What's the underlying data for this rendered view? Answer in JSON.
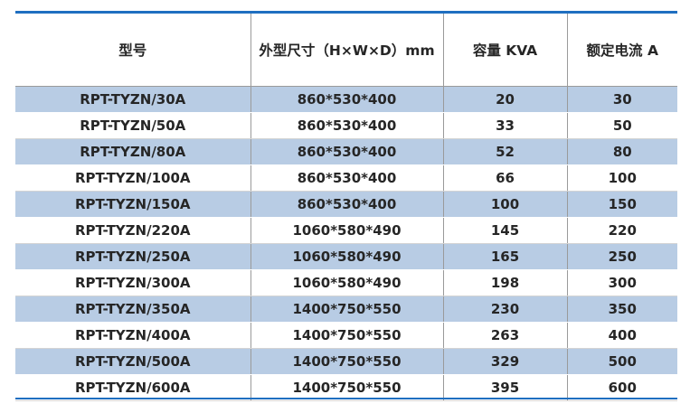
{
  "table": {
    "headers": [
      "型号",
      "外型尺寸（H×W×D）mm",
      "容量 KVA",
      "额定电流 A"
    ],
    "rows": [
      [
        "RPT-TYZN/30A",
        "860*530*400",
        "20",
        "30"
      ],
      [
        "RPT-TYZN/50A",
        "860*530*400",
        "33",
        "50"
      ],
      [
        "RPT-TYZN/80A",
        "860*530*400",
        "52",
        "80"
      ],
      [
        "RPT-TYZN/100A",
        "860*530*400",
        "66",
        "100"
      ],
      [
        "RPT-TYZN/150A",
        "860*530*400",
        "100",
        "150"
      ],
      [
        "RPT-TYZN/220A",
        "1060*580*490",
        "145",
        "220"
      ],
      [
        "RPT-TYZN/250A",
        "1060*580*490",
        "165",
        "250"
      ],
      [
        "RPT-TYZN/300A",
        "1060*580*490",
        "198",
        "300"
      ],
      [
        "RPT-TYZN/350A",
        "1400*750*550",
        "230",
        "350"
      ],
      [
        "RPT-TYZN/400A",
        "1400*750*550",
        "263",
        "400"
      ],
      [
        "RPT-TYZN/500A",
        "1400*750*550",
        "329",
        "500"
      ],
      [
        "RPT-TYZN/600A",
        "1400*750*550",
        "395",
        "600"
      ]
    ]
  },
  "colors": {
    "accent_rule": "#1f6fc0",
    "row_stripe": "#b8cce4",
    "text": "#262626"
  }
}
